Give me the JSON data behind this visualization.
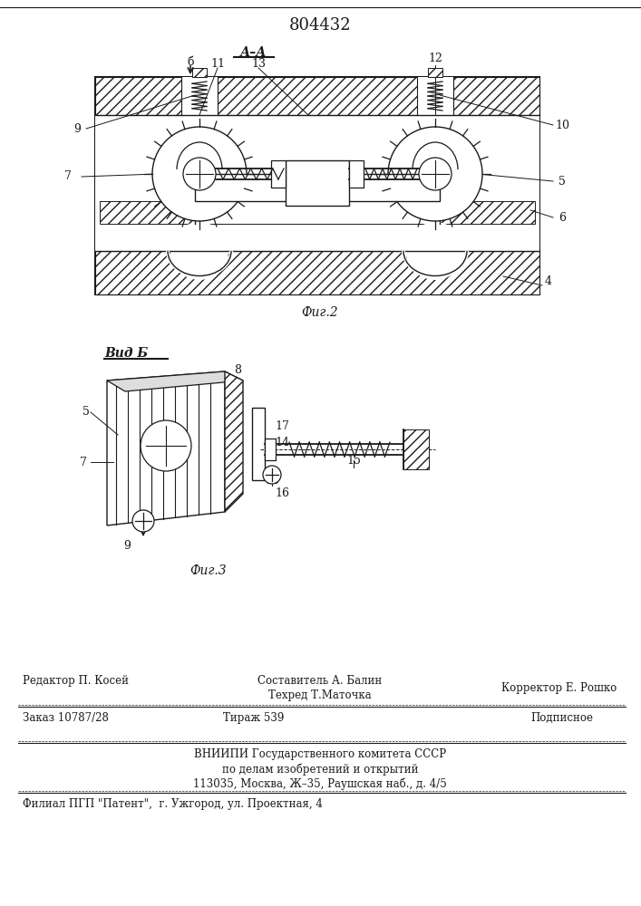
{
  "patent_number": "804432",
  "fig2_label": "А–А",
  "fig2_caption": "Фиг.2",
  "fig3_caption": "Фиг.3",
  "fig3_view_label": "Вид Б",
  "bg_color": "#ffffff",
  "line_color": "#1a1a1a",
  "footer_line1_left": "Редактор П. Косей",
  "footer_compose1": "Составитель А. Балин",
  "footer_compose2": "Техред Т.Маточка",
  "footer_line1_right": "Корректор Е. Рошко",
  "footer_order": "Заказ 10787/28",
  "footer_tirazh": "Тираж 539",
  "footer_podp": "Подписное",
  "footer_vniip": "ВНИИПИ Государственного комитета СССР",
  "footer_dela": "по делам изобретений и открытий",
  "footer_addr": "113035, Москва, Ж–35, Раушская наб., д. 4/5",
  "footer_filial": "Филиал ПГП \"Патент\",  г. Ужгород, ул. Проектная, 4"
}
